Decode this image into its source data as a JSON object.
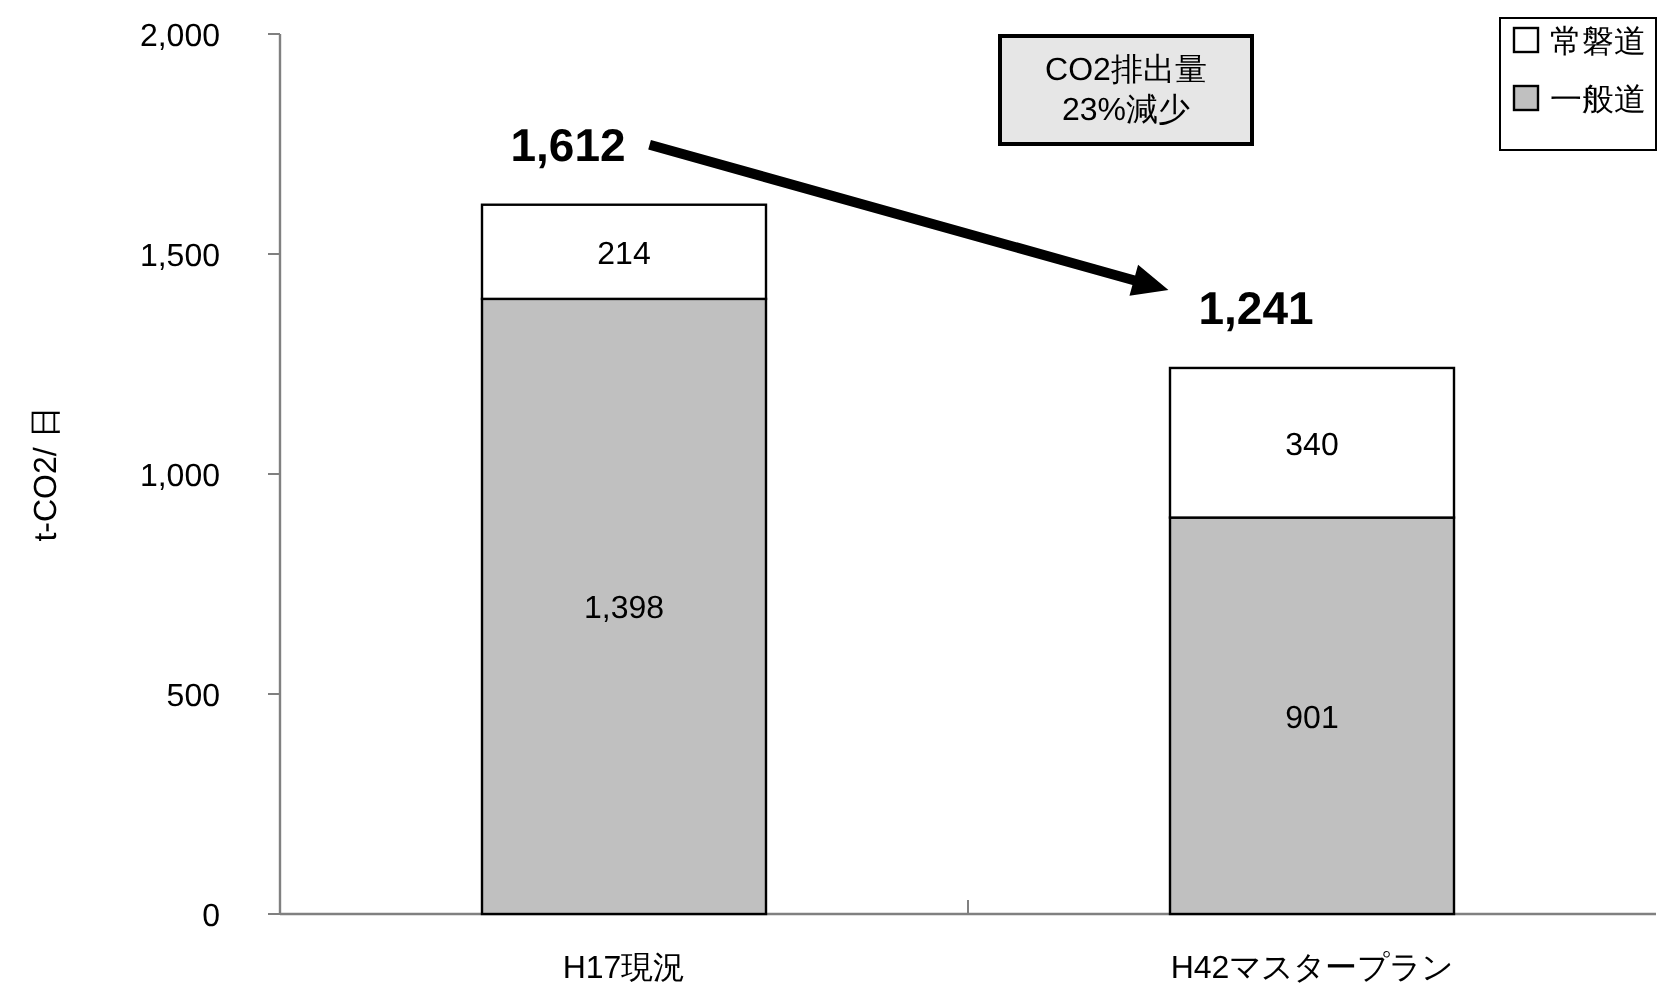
{
  "chart_data": {
    "type": "bar",
    "stacked": true,
    "ylabel": "t-CO2/ 日",
    "categories": [
      "H17現況",
      "H42マスタープラン"
    ],
    "series": [
      {
        "name": "一般道",
        "color": "#c0c0c0",
        "values": [
          1398,
          901
        ],
        "value_labels": [
          "1,398",
          "901"
        ]
      },
      {
        "name": "常磐道",
        "color": "#ffffff",
        "values": [
          214,
          340
        ],
        "value_labels": [
          "214",
          "340"
        ]
      }
    ],
    "totals": [
      "1,612",
      "1,241"
    ],
    "ylim": [
      0,
      2000
    ],
    "yticks": [
      0,
      500,
      {
        "value": 1000,
        "label": "1,000"
      },
      {
        "value": 1500,
        "label": "1,500"
      },
      {
        "value": 2000,
        "label": "2,000"
      }
    ],
    "legend": "top right",
    "grid": false,
    "annotations": [
      "CO2排出量\n23%減少"
    ]
  }
}
